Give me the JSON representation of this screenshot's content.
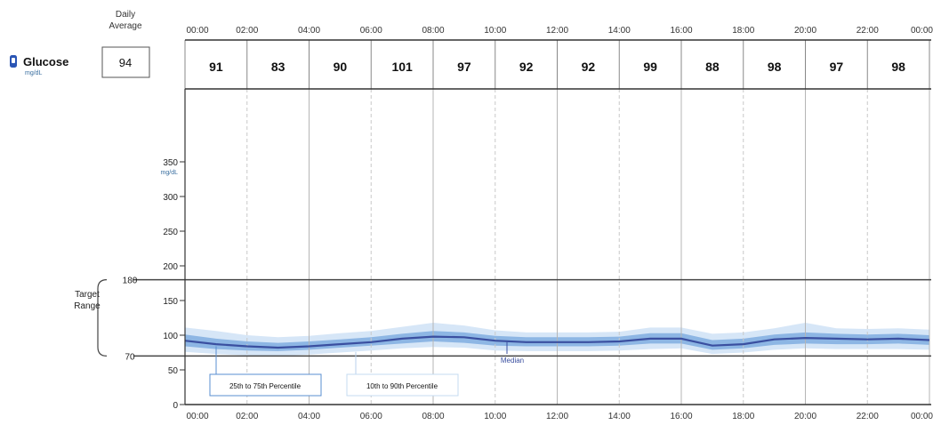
{
  "metric": {
    "name": "Glucose",
    "unit": "mg/dL",
    "icon": "glucose-sensor-icon",
    "daily_average_label_line1": "Daily",
    "daily_average_label_line2": "Average",
    "daily_average_value": "94"
  },
  "colors": {
    "median": "#3a4fa0",
    "band_25_75": "#8db6e4",
    "band_10_90": "#d6e6f7",
    "icon": "#2a55b4"
  },
  "chart_data": {
    "type": "area",
    "x_tick_labels": [
      "00:00",
      "02:00",
      "04:00",
      "06:00",
      "08:00",
      "10:00",
      "12:00",
      "14:00",
      "16:00",
      "18:00",
      "20:00",
      "22:00",
      "00:00"
    ],
    "x_range_hours": [
      0,
      24
    ],
    "y_range": [
      0,
      375
    ],
    "y_ticks": [
      0,
      50,
      100,
      150,
      200,
      250,
      300,
      350
    ],
    "y_tick_labels": [
      "0",
      "50",
      "100",
      "150",
      "200",
      "250",
      "300",
      "350"
    ],
    "y_unit_label": "mg/dL",
    "target_range": {
      "low": 70,
      "high": 180,
      "low_label": "70",
      "high_label": "180",
      "label_line1": "Target",
      "label_line2": "Range"
    },
    "two_hour_averages": [
      "91",
      "83",
      "90",
      "101",
      "97",
      "92",
      "92",
      "99",
      "88",
      "98",
      "97",
      "98"
    ],
    "x_hours": [
      0,
      1,
      2,
      3,
      4,
      5,
      6,
      7,
      8,
      9,
      10,
      11,
      12,
      13,
      14,
      15,
      16,
      17,
      18,
      19,
      20,
      21,
      22,
      23,
      24
    ],
    "series": [
      {
        "name": "Median",
        "values": [
          92,
          87,
          84,
          82,
          84,
          87,
          90,
          95,
          98,
          97,
          92,
          90,
          90,
          90,
          91,
          95,
          95,
          85,
          87,
          94,
          96,
          95,
          94,
          95,
          93
        ]
      },
      {
        "name": "25th to 75th Percentile",
        "low": [
          84,
          80,
          78,
          77,
          79,
          82,
          85,
          88,
          91,
          89,
          85,
          84,
          84,
          84,
          85,
          88,
          88,
          79,
          81,
          86,
          88,
          87,
          87,
          88,
          86
        ],
        "high": [
          101,
          95,
          91,
          89,
          91,
          94,
          97,
          102,
          106,
          104,
          99,
          97,
          97,
          97,
          98,
          103,
          103,
          93,
          95,
          101,
          104,
          102,
          101,
          102,
          100
        ]
      },
      {
        "name": "10th to 90th Percentile",
        "low": [
          76,
          73,
          71,
          70,
          72,
          75,
          78,
          81,
          83,
          82,
          78,
          77,
          77,
          77,
          78,
          80,
          81,
          73,
          75,
          79,
          81,
          80,
          80,
          80,
          79
        ],
        "high": [
          111,
          106,
          100,
          97,
          99,
          103,
          106,
          112,
          118,
          114,
          107,
          104,
          104,
          104,
          105,
          111,
          111,
          102,
          104,
          110,
          118,
          110,
          109,
          110,
          108
        ]
      }
    ],
    "legend": [
      "25th to 75th Percentile",
      "10th to 90th Percentile",
      "Median"
    ]
  }
}
